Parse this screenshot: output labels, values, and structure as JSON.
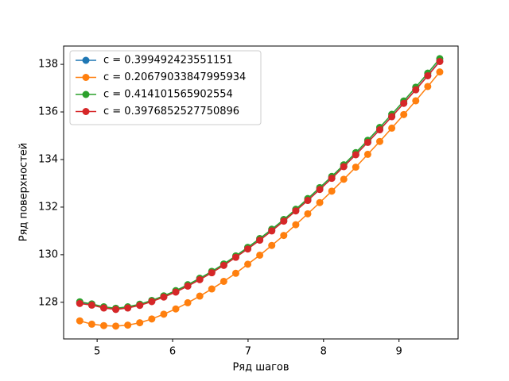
{
  "chart_data": {
    "type": "line",
    "x_label": "Ряд шагов",
    "y_label": "Ряд поверхностей",
    "x": [
      4.77,
      4.929,
      5.088,
      5.247,
      5.406,
      5.565,
      5.724,
      5.883,
      6.042,
      6.201,
      6.36,
      6.519,
      6.678,
      6.837,
      6.996,
      7.155,
      7.314,
      7.473,
      7.632,
      7.791,
      7.95,
      8.109,
      8.268,
      8.427,
      8.586,
      8.745,
      8.904,
      9.063,
      9.222,
      9.381,
      9.54
    ],
    "series": [
      {
        "name": "c = 0.399492423551151",
        "color": "#1f77b4",
        "values": [
          127.97,
          127.89,
          127.77,
          127.71,
          127.77,
          127.88,
          128.04,
          128.23,
          128.44,
          128.69,
          128.96,
          129.25,
          129.56,
          129.9,
          130.25,
          130.62,
          131.01,
          131.42,
          131.85,
          132.29,
          132.75,
          133.22,
          133.71,
          134.21,
          134.73,
          135.26,
          135.81,
          136.37,
          136.94,
          137.53,
          138.14
        ]
      },
      {
        "name": "c = 0.20679033847995934",
        "color": "#ff7f0e",
        "values": [
          127.22,
          127.08,
          127.02,
          127.0,
          127.04,
          127.14,
          127.3,
          127.5,
          127.72,
          127.98,
          128.26,
          128.56,
          128.88,
          129.22,
          129.6,
          129.98,
          130.39,
          130.81,
          131.26,
          131.72,
          132.19,
          132.67,
          133.17,
          133.68,
          134.22,
          134.76,
          135.32,
          135.89,
          136.47,
          137.07,
          137.68
        ]
      },
      {
        "name": "c = 0.414101565902554",
        "color": "#2ca02c",
        "values": [
          128.02,
          127.93,
          127.81,
          127.75,
          127.81,
          127.92,
          128.08,
          128.27,
          128.49,
          128.74,
          129.01,
          129.3,
          129.61,
          129.95,
          130.31,
          130.68,
          131.07,
          131.48,
          131.91,
          132.36,
          132.82,
          133.29,
          133.78,
          134.29,
          134.81,
          135.35,
          135.9,
          136.46,
          137.04,
          137.63,
          138.24
        ]
      },
      {
        "name": "c = 0.3976852527750896",
        "color": "#d62728",
        "values": [
          127.95,
          127.88,
          127.76,
          127.7,
          127.76,
          127.87,
          128.03,
          128.22,
          128.43,
          128.68,
          128.95,
          129.24,
          129.55,
          129.89,
          130.24,
          130.61,
          131.0,
          131.41,
          131.84,
          132.28,
          132.74,
          133.21,
          133.7,
          134.2,
          134.72,
          135.25,
          135.8,
          136.36,
          136.93,
          137.52,
          138.12
        ]
      }
    ],
    "xlim": [
      4.556,
      9.783
    ],
    "xticks": [
      5,
      6,
      7,
      8,
      9
    ],
    "ylim": [
      126.46,
      138.77
    ],
    "yticks": [
      128,
      130,
      132,
      134,
      136,
      138
    ],
    "grid": false,
    "legend": "upper left"
  }
}
